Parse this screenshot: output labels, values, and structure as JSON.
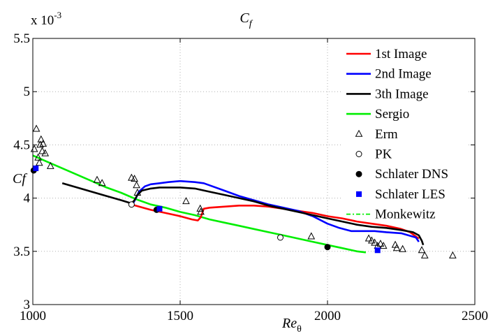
{
  "chart_data": {
    "type": "line",
    "title": "C",
    "title_sub": "f",
    "xlabel": "Re",
    "xlabel_sub": "θ",
    "ylabel": "Cf",
    "exponent_label": "x 10",
    "exponent_power": "-3",
    "xlim": [
      1000,
      2500
    ],
    "ylim": [
      3.0,
      5.5
    ],
    "xticks": [
      1000,
      1500,
      2000,
      2500
    ],
    "xtick_labels": [
      "1000",
      "1500",
      "2000",
      "2500"
    ],
    "yticks": [
      3.0,
      3.5,
      4.0,
      4.5,
      5.0,
      5.5
    ],
    "ytick_labels": [
      "3",
      "3.5",
      "4",
      "4.5",
      "5",
      "5.5"
    ],
    "grid": true,
    "legend_position": "top-right",
    "series": [
      {
        "name": "1st Image",
        "kind": "line",
        "color": "#ff0000",
        "x": [
          1335,
          1400,
          1450,
          1500,
          1540,
          1560,
          1570,
          1580,
          1600,
          1650,
          1700,
          1750,
          1800,
          1850,
          1900,
          1950,
          2000,
          2050,
          2100,
          2150,
          2200,
          2250,
          2280,
          2300,
          2310
        ],
        "y": [
          3.94,
          3.89,
          3.86,
          3.83,
          3.8,
          3.79,
          3.82,
          3.9,
          3.91,
          3.92,
          3.93,
          3.93,
          3.92,
          3.9,
          3.88,
          3.86,
          3.83,
          3.81,
          3.78,
          3.76,
          3.74,
          3.71,
          3.68,
          3.64,
          3.62
        ]
      },
      {
        "name": "2nd Image",
        "kind": "line",
        "color": "#0000ff",
        "x": [
          1340,
          1350,
          1360,
          1380,
          1400,
          1430,
          1460,
          1500,
          1550,
          1580,
          1600,
          1650,
          1700,
          1750,
          1800,
          1850,
          1900,
          1950,
          2000,
          2040,
          2080,
          2120,
          2160,
          2200,
          2250,
          2300,
          2310
        ],
        "y": [
          3.95,
          4.0,
          4.06,
          4.11,
          4.13,
          4.14,
          4.15,
          4.16,
          4.15,
          4.14,
          4.12,
          4.07,
          4.02,
          3.98,
          3.94,
          3.91,
          3.88,
          3.83,
          3.76,
          3.72,
          3.69,
          3.69,
          3.69,
          3.68,
          3.67,
          3.63,
          3.59
        ]
      },
      {
        "name": "3th Image",
        "kind": "line",
        "color": "#000000",
        "x": [
          1100,
          1150,
          1200,
          1250,
          1300,
          1335,
          1345,
          1355,
          1370,
          1400,
          1430,
          1460,
          1500,
          1550,
          1600,
          1650,
          1700,
          1750,
          1800,
          1850,
          1900,
          1950,
          2000,
          2050,
          2100,
          2150,
          2200,
          2250,
          2290,
          2310,
          2320,
          2325
        ],
        "y": [
          4.14,
          4.1,
          4.06,
          4.02,
          3.98,
          3.95,
          3.98,
          4.03,
          4.07,
          4.09,
          4.1,
          4.1,
          4.1,
          4.09,
          4.06,
          4.03,
          4.0,
          3.97,
          3.93,
          3.9,
          3.87,
          3.84,
          3.81,
          3.78,
          3.75,
          3.73,
          3.72,
          3.7,
          3.68,
          3.65,
          3.6,
          3.56
        ]
      },
      {
        "name": "Sergio",
        "kind": "line",
        "color": "#00ee00",
        "x": [
          1000,
          1050,
          1100,
          1150,
          1200,
          1250,
          1300,
          1350,
          1400,
          1450,
          1500,
          1550,
          1600,
          1650,
          1700,
          1750,
          1800,
          1850,
          1900,
          1950,
          2000,
          2050,
          2100,
          2130
        ],
        "y": [
          4.4,
          4.34,
          4.28,
          4.22,
          4.16,
          4.1,
          4.05,
          3.99,
          3.94,
          3.91,
          3.87,
          3.84,
          3.8,
          3.77,
          3.74,
          3.71,
          3.68,
          3.65,
          3.62,
          3.59,
          3.56,
          3.53,
          3.5,
          3.49
        ]
      },
      {
        "name": "Erm",
        "kind": "marker",
        "marker": "triangle",
        "color": "#000000",
        "x": [
          1005,
          1012,
          1018,
          1022,
          1025,
          1028,
          1032,
          1035,
          1042,
          1060,
          1218,
          1235,
          1335,
          1345,
          1352,
          1355,
          1520,
          1568,
          1570,
          1945,
          2140,
          2150,
          2160,
          2170,
          2180,
          2190,
          2230,
          2235,
          2255,
          2320,
          2330,
          2425
        ],
        "y": [
          4.46,
          4.65,
          4.38,
          4.33,
          4.5,
          4.55,
          4.44,
          4.51,
          4.42,
          4.3,
          4.17,
          4.14,
          4.19,
          4.18,
          4.12,
          4.05,
          3.97,
          3.9,
          3.87,
          3.64,
          3.62,
          3.6,
          3.58,
          3.55,
          3.57,
          3.55,
          3.56,
          3.53,
          3.52,
          3.51,
          3.46,
          3.46
        ]
      },
      {
        "name": "PK",
        "kind": "marker",
        "marker": "open-circle",
        "color": "#000000",
        "x": [
          1335,
          1840
        ],
        "y": [
          3.94,
          3.63
        ]
      },
      {
        "name": "Schlater DNS",
        "kind": "marker",
        "marker": "filled-circle",
        "color": "#000000",
        "x": [
          1003,
          1420,
          2000
        ],
        "y": [
          4.26,
          3.89,
          3.54
        ]
      },
      {
        "name": "Schlater LES",
        "kind": "marker",
        "marker": "square",
        "color": "#0000ff",
        "x": [
          1010,
          1430,
          2170
        ],
        "y": [
          4.28,
          3.9,
          3.51
        ]
      },
      {
        "name": "Monkewitz",
        "kind": "line",
        "dash": "dashdot",
        "color": "#00ee00",
        "x": [
          1000,
          2130
        ],
        "y": [
          4.4,
          3.49
        ]
      }
    ]
  }
}
